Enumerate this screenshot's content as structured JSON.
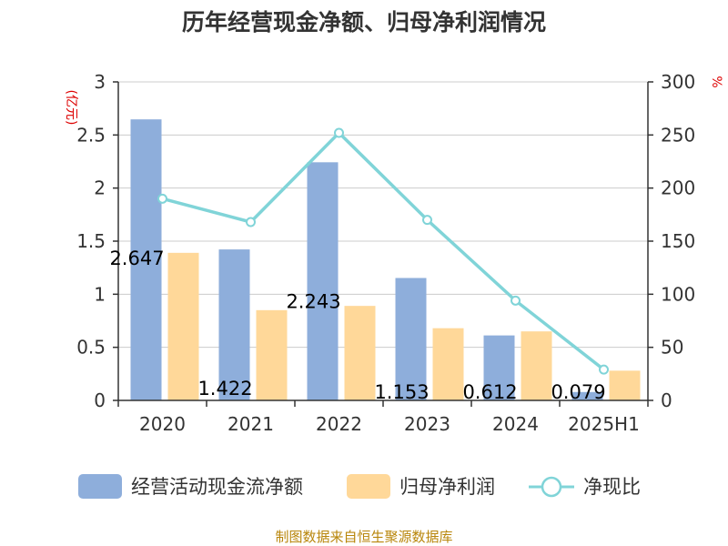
{
  "chart_data": {
    "type": "bar",
    "title": "历年经营现金净额、归母净利润情况",
    "categories": [
      "2020",
      "2021",
      "2022",
      "2023",
      "2024",
      "2025H1"
    ],
    "left_axis": {
      "unit_label": "(亿元)",
      "ylim": [
        0,
        3
      ],
      "ticks": [
        "0",
        "0.5",
        "1",
        "1.5",
        "2",
        "2.5",
        "3"
      ]
    },
    "right_axis": {
      "unit_label": "%",
      "ylim": [
        0,
        300
      ],
      "ticks": [
        "0",
        "50",
        "100",
        "150",
        "200",
        "250",
        "300"
      ]
    },
    "grid": true,
    "series": [
      {
        "name": "经营活动现金流净额",
        "type": "bar",
        "axis": "left",
        "color": "#8eaedb",
        "values": [
          2.647,
          1.422,
          2.243,
          1.153,
          0.612,
          0.079
        ],
        "labels": [
          "2.647",
          "1.422",
          "2.243",
          "1.153",
          "0.612",
          "0.079"
        ]
      },
      {
        "name": "归母净利润",
        "type": "bar",
        "axis": "left",
        "color": "#ffd899",
        "values": [
          1.39,
          0.85,
          0.89,
          0.68,
          0.65,
          0.28
        ]
      },
      {
        "name": "净现比",
        "type": "line",
        "axis": "right",
        "color": "#80d4d8",
        "values": [
          190,
          168,
          252,
          170,
          94,
          29
        ]
      }
    ],
    "legend_position": "bottom"
  },
  "footer": {
    "source": "制图数据来自恒生聚源数据库"
  }
}
